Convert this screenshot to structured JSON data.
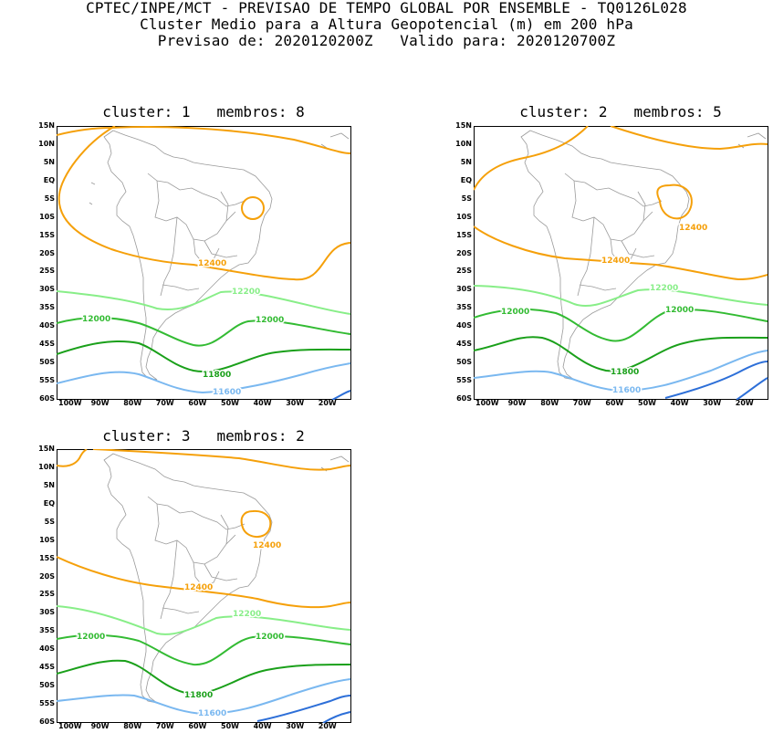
{
  "header": {
    "line1": "CPTEC/INPE/MCT - PREVISAO DE TEMPO GLOBAL POR ENSEMBLE - TQ0126L028",
    "line2": "Cluster Medio para a Altura Geopotencial (m) em 200 hPa",
    "line3": "Previsao de: 2020120200Z   Valido para: 2020120700Z"
  },
  "axes": {
    "lat_labels": [
      "15N",
      "10N",
      "5N",
      "EQ",
      "5S",
      "10S",
      "15S",
      "20S",
      "25S",
      "30S",
      "35S",
      "40S",
      "45S",
      "50S",
      "55S",
      "60S"
    ],
    "lon_labels": [
      "100W",
      "90W",
      "80W",
      "70W",
      "60W",
      "50W",
      "40W",
      "30W",
      "20W"
    ]
  },
  "colors": {
    "c12400": "#f5a00a",
    "c12200": "#88ee88",
    "c12000": "#33bb33",
    "c11800": "#1aa01a",
    "c11600": "#7ab8f0",
    "c11400": "#2d6fd8",
    "coast": "#9a9a9a"
  },
  "panels": [
    {
      "title": "cluster: 1   membros: 8",
      "labels": [
        "12400",
        "12200",
        "12000",
        "12000",
        "11800",
        "11600"
      ]
    },
    {
      "title": "cluster: 2   membros: 5",
      "labels": [
        "12400",
        "12400",
        "12200",
        "12000",
        "12000",
        "11800",
        "11600"
      ]
    },
    {
      "title": "cluster: 3   membros: 2",
      "labels": [
        "12400",
        "12400",
        "12200",
        "12000",
        "12000",
        "11800",
        "11600"
      ]
    }
  ]
}
